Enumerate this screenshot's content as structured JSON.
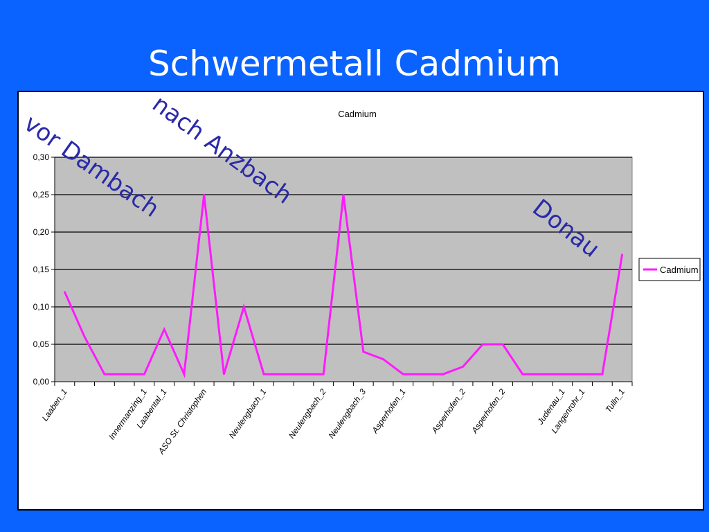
{
  "slide": {
    "title": "Schwermetall Cadmium",
    "background_color": "#0a63ff"
  },
  "annotations": {
    "vor_dambach": "vor Dambach",
    "nach_anzbach": "nach Anzbach",
    "donau": "Donau"
  },
  "chart_data": {
    "type": "line",
    "title": "Cadmium",
    "xlabel": "",
    "ylabel": "",
    "ylim": [
      0,
      0.3
    ],
    "y_ticks": [
      "0,00",
      "0,05",
      "0,10",
      "0,15",
      "0,20",
      "0,25",
      "0,30"
    ],
    "x_tick_labels": [
      "Laaben_1",
      "Innermanzing_1",
      "Laabental_1",
      "ASO St. Christophen",
      "Neulengbach_1",
      "Neulengbach_2",
      "Neulengbach_3",
      "Asperhofen_1",
      "Asperhofen_2",
      "Asperhofen_2",
      "Judenau_1",
      "Langenrohr_1",
      "Tulln_1"
    ],
    "x_label_index": [
      0,
      4,
      5,
      7,
      10,
      13,
      15,
      17,
      20,
      22,
      25,
      26,
      28
    ],
    "series": [
      {
        "name": "Cadmium",
        "color": "#ff1aff",
        "values": [
          0.12,
          0.06,
          0.01,
          0.01,
          0.01,
          0.07,
          0.01,
          0.25,
          0.01,
          0.1,
          0.01,
          0.01,
          0.01,
          0.01,
          0.25,
          0.04,
          0.03,
          0.01,
          0.01,
          0.01,
          0.02,
          0.05,
          0.05,
          0.01,
          0.01,
          0.01,
          0.01,
          0.01,
          0.17
        ]
      }
    ],
    "grid": true,
    "plot_background": "#c0c0c0",
    "legend_position": "right"
  }
}
